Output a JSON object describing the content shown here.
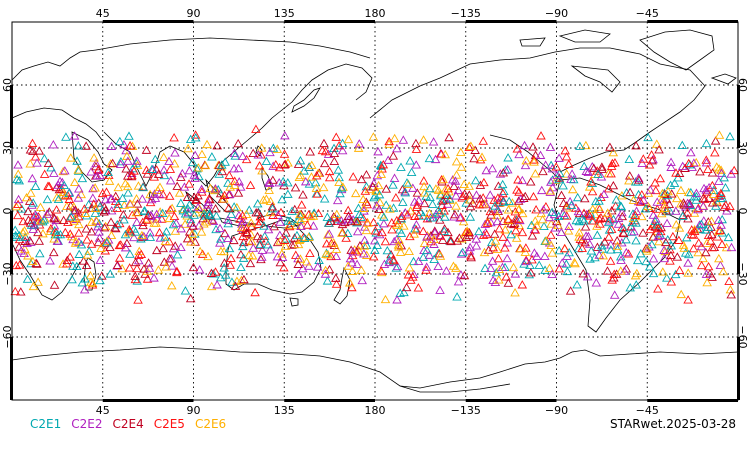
{
  "chart_data": {
    "type": "scatter",
    "projection": "equirectangular",
    "center_longitude": 180,
    "marker": "triangle-open",
    "grid": true,
    "xlim": [
      0,
      360
    ],
    "ylim": [
      -90,
      90
    ],
    "x_ticks": [
      {
        "lon": 45,
        "label": "45"
      },
      {
        "lon": 90,
        "label": "90"
      },
      {
        "lon": 135,
        "label": "135"
      },
      {
        "lon": 180,
        "label": "180"
      },
      {
        "lon": 225,
        "label": "−135"
      },
      {
        "lon": 270,
        "label": "−90"
      },
      {
        "lon": 315,
        "label": "−45"
      }
    ],
    "y_ticks": [
      {
        "lat": 60,
        "label": "60"
      },
      {
        "lat": 30,
        "label": "30"
      },
      {
        "lat": 0,
        "label": "0"
      },
      {
        "lat": -30,
        "label": "−30"
      },
      {
        "lat": -60,
        "label": "−60"
      }
    ],
    "coverage": {
      "lat_min": -45,
      "lat_max": 40,
      "lon_min": 0,
      "lon_max": 360
    },
    "series": [
      {
        "name": "C2E1",
        "color": "#00a8b0"
      },
      {
        "name": "C2E2",
        "color": "#b020c0"
      },
      {
        "name": "C2E4",
        "color": "#c00020"
      },
      {
        "name": "C2E5",
        "color": "#ff1010"
      },
      {
        "name": "C2E6",
        "color": "#ffb000"
      }
    ]
  },
  "footer": {
    "stamp": "STARwet.2025-03-28"
  }
}
